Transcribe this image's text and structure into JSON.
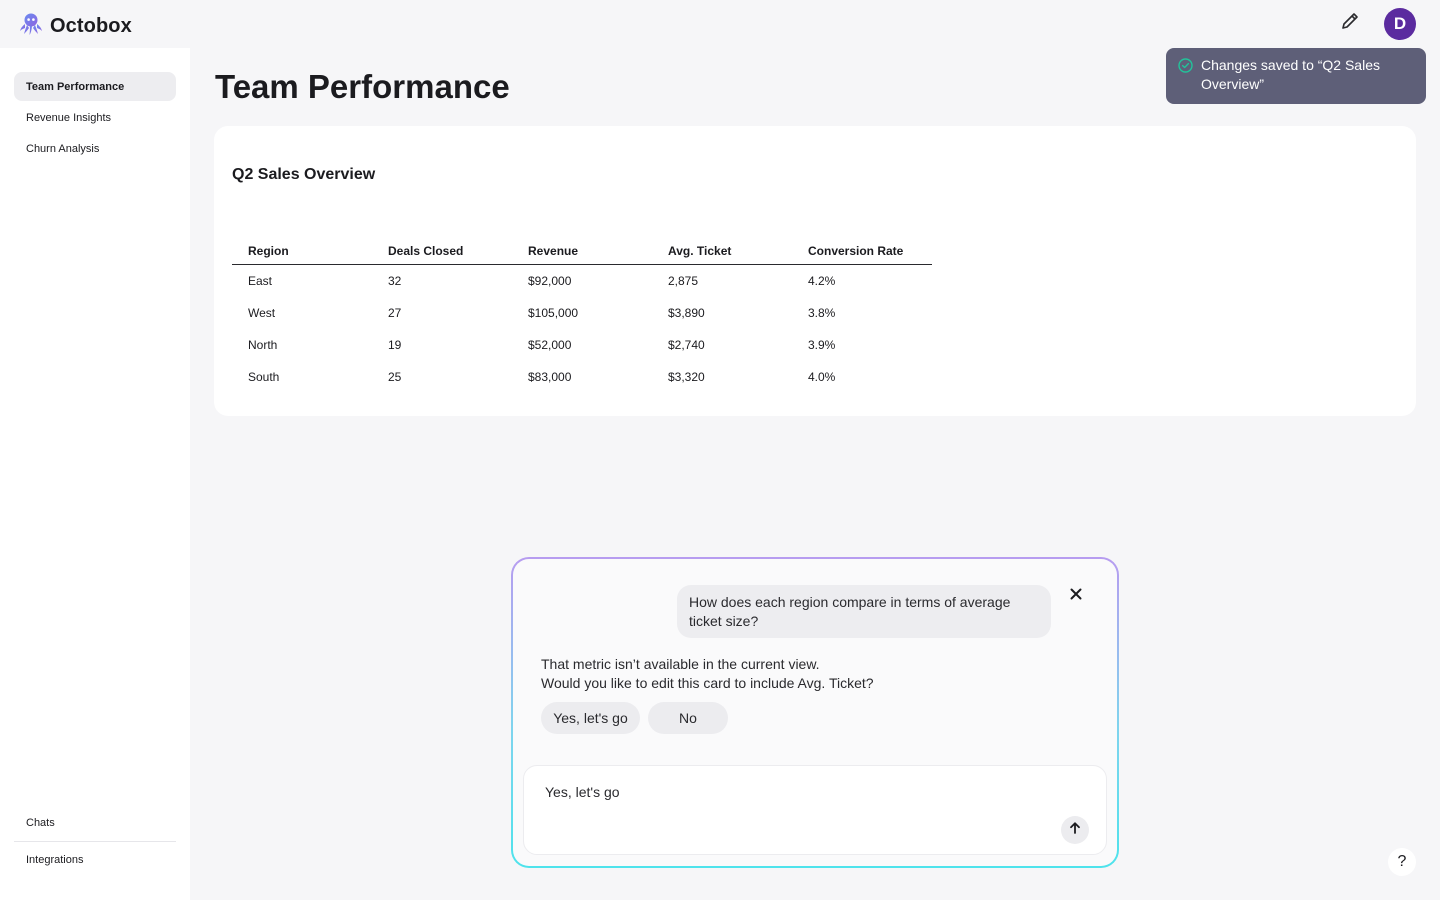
{
  "app": {
    "name": "Octobox",
    "logo_icon": "octopus-logo-icon"
  },
  "header": {
    "edit_icon": "pencil-icon",
    "avatar_initial": "D"
  },
  "sidebar": {
    "items": [
      {
        "label": "Team Performance",
        "active": true
      },
      {
        "label": "Revenue Insights",
        "active": false
      },
      {
        "label": "Churn Analysis",
        "active": false
      }
    ],
    "bottom_items": [
      {
        "label": "Chats"
      },
      {
        "label": "Integrations"
      }
    ]
  },
  "main": {
    "page_title": "Team Performance",
    "card": {
      "title": "Q2 Sales Overview",
      "columns": [
        "Region",
        "Deals Closed",
        "Revenue",
        "Avg. Ticket",
        "Conversion Rate"
      ],
      "rows": [
        [
          "East",
          "32",
          "$92,000",
          "2,875",
          "4.2%"
        ],
        [
          "West",
          "27",
          "$105,000",
          "$3,890",
          "3.8%"
        ],
        [
          "North",
          "19",
          "$52,000",
          "$2,740",
          "3.9%"
        ],
        [
          "South",
          "25",
          "$83,000",
          "$3,320",
          "4.0%"
        ]
      ]
    }
  },
  "toast": {
    "text": "Changes saved to “Q2 Sales Overview”",
    "icon": "check-circle-icon",
    "accent": "#22c39a"
  },
  "chat": {
    "user_message": "How does each region compare in terms of average ticket size?",
    "assistant_line1": "That metric isn’t available in the current view.",
    "assistant_line2": "Would you like to edit this card to include Avg. Ticket?",
    "option_yes": "Yes, let's go",
    "option_no": "No",
    "input_value": "Yes, let's go"
  },
  "help": {
    "label": "?"
  },
  "colors": {
    "avatar": "#5b2b9f",
    "toast_bg": "#5e5f78",
    "chat_border_top": "#b79cf0",
    "chat_border_bottom": "#4ee3ec"
  }
}
